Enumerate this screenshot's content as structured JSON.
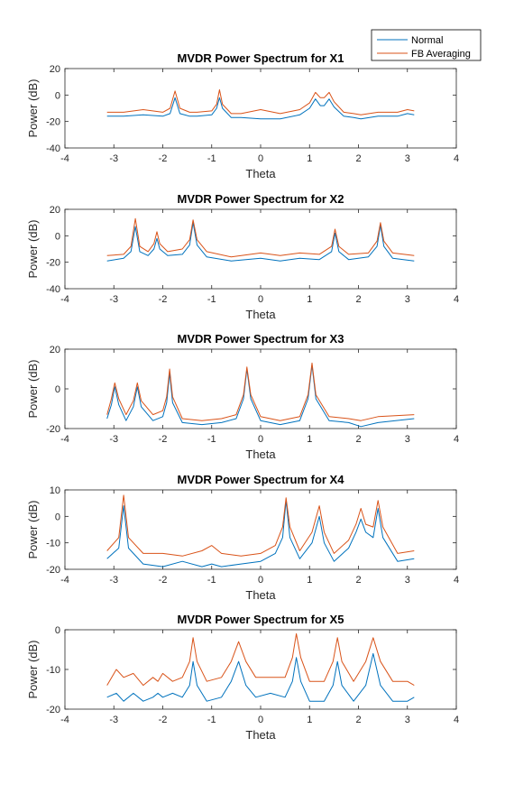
{
  "legend": {
    "placement": "top-right",
    "entries": [
      {
        "label": "Normal",
        "color": "#0072BD"
      },
      {
        "label": "FB Averaging",
        "color": "#D95319"
      }
    ]
  },
  "chart_data": [
    {
      "type": "line",
      "title": "MVDR Power Spectrum for X1",
      "xlabel": "Theta",
      "ylabel": "Power (dB)",
      "xlim": [
        -4,
        4
      ],
      "ylim": [
        -40,
        20
      ],
      "xticks": [
        "-4",
        "-3",
        "-2",
        "-1",
        "0",
        "1",
        "2",
        "3",
        "4"
      ],
      "yticks": [
        "-40",
        "-20",
        "0",
        "20"
      ],
      "series": [
        {
          "name": "Normal",
          "color": "#0072BD",
          "x": [
            -3.14,
            -2.8,
            -2.4,
            -2.0,
            -1.85,
            -1.75,
            -1.65,
            -1.45,
            -1.3,
            -1.0,
            -0.9,
            -0.84,
            -0.78,
            -0.6,
            -0.4,
            0.0,
            0.4,
            0.8,
            1.0,
            1.12,
            1.22,
            1.3,
            1.4,
            1.5,
            1.7,
            1.9,
            2.05,
            2.4,
            2.8,
            3.0,
            3.14
          ],
          "y": [
            -16,
            -16,
            -15,
            -16,
            -14,
            -2,
            -14,
            -16,
            -16,
            -15,
            -10,
            -2,
            -10,
            -17,
            -17,
            -18,
            -18,
            -15,
            -10,
            -3,
            -8,
            -8,
            -3,
            -9,
            -16,
            -17,
            -18,
            -16,
            -16,
            -14,
            -15
          ]
        },
        {
          "name": "FB Averaging",
          "color": "#D95319",
          "x": [
            -3.14,
            -2.8,
            -2.4,
            -2.0,
            -1.85,
            -1.75,
            -1.65,
            -1.45,
            -1.3,
            -1.0,
            -0.9,
            -0.84,
            -0.78,
            -0.6,
            -0.4,
            0.0,
            0.4,
            0.8,
            1.0,
            1.12,
            1.22,
            1.3,
            1.4,
            1.5,
            1.7,
            1.9,
            2.05,
            2.4,
            2.8,
            3.0,
            3.14
          ],
          "y": [
            -13,
            -13,
            -11,
            -13,
            -10,
            3,
            -10,
            -13,
            -13,
            -12,
            -7,
            4,
            -7,
            -14,
            -14,
            -11,
            -14,
            -11,
            -6,
            2,
            -2,
            -2,
            2,
            -5,
            -13,
            -14,
            -15,
            -13,
            -13,
            -11,
            -12
          ]
        }
      ]
    },
    {
      "type": "line",
      "title": "MVDR Power Spectrum for X2",
      "xlabel": "Theta",
      "ylabel": "Power (dB)",
      "xlim": [
        -4,
        4
      ],
      "ylim": [
        -40,
        20
      ],
      "xticks": [
        "-4",
        "-3",
        "-2",
        "-1",
        "0",
        "1",
        "2",
        "3",
        "4"
      ],
      "yticks": [
        "-40",
        "-20",
        "0",
        "20"
      ],
      "series": [
        {
          "name": "Normal",
          "color": "#0072BD",
          "x": [
            -3.14,
            -2.8,
            -2.65,
            -2.56,
            -2.47,
            -2.3,
            -2.18,
            -2.12,
            -2.06,
            -1.9,
            -1.6,
            -1.45,
            -1.38,
            -1.3,
            -1.1,
            -0.6,
            0.0,
            0.4,
            0.8,
            1.2,
            1.45,
            1.52,
            1.6,
            1.8,
            2.2,
            2.38,
            2.45,
            2.52,
            2.7,
            3.14
          ],
          "y": [
            -19,
            -17,
            -12,
            7,
            -12,
            -15,
            -10,
            -2,
            -10,
            -15,
            -14,
            -7,
            10,
            -7,
            -16,
            -19,
            -17,
            -19,
            -17,
            -18,
            -12,
            2,
            -12,
            -18,
            -16,
            -8,
            8,
            -8,
            -17,
            -19
          ]
        },
        {
          "name": "FB Averaging",
          "color": "#D95319",
          "x": [
            -3.14,
            -2.8,
            -2.65,
            -2.56,
            -2.47,
            -2.3,
            -2.18,
            -2.12,
            -2.06,
            -1.9,
            -1.6,
            -1.45,
            -1.38,
            -1.3,
            -1.1,
            -0.6,
            0.0,
            0.4,
            0.8,
            1.2,
            1.45,
            1.52,
            1.6,
            1.8,
            2.2,
            2.38,
            2.45,
            2.52,
            2.7,
            3.14
          ],
          "y": [
            -15,
            -14,
            -8,
            13,
            -8,
            -12,
            -6,
            3,
            -6,
            -12,
            -10,
            -3,
            12,
            -3,
            -12,
            -16,
            -13,
            -15,
            -13,
            -14,
            -8,
            5,
            -8,
            -14,
            -13,
            -4,
            10,
            -4,
            -13,
            -15
          ]
        }
      ]
    },
    {
      "type": "line",
      "title": "MVDR Power Spectrum for X3",
      "xlabel": "Theta",
      "ylabel": "Power (dB)",
      "xlim": [
        -4,
        4
      ],
      "ylim": [
        -20,
        20
      ],
      "xticks": [
        "-4",
        "-3",
        "-2",
        "-1",
        "0",
        "1",
        "2",
        "3",
        "4"
      ],
      "yticks": [
        "-20",
        "0",
        "20"
      ],
      "series": [
        {
          "name": "Normal",
          "color": "#0072BD",
          "x": [
            -3.14,
            -3.05,
            -2.98,
            -2.9,
            -2.75,
            -2.6,
            -2.52,
            -2.44,
            -2.2,
            -2.0,
            -1.92,
            -1.86,
            -1.8,
            -1.6,
            -1.2,
            -0.8,
            -0.5,
            -0.35,
            -0.28,
            -0.2,
            0.0,
            0.4,
            0.8,
            0.97,
            1.05,
            1.13,
            1.4,
            1.8,
            2.05,
            2.4,
            3.14
          ],
          "y": [
            -15,
            -8,
            1,
            -8,
            -16,
            -9,
            1,
            -9,
            -16,
            -14,
            -7,
            8,
            -7,
            -17,
            -18,
            -17,
            -15,
            -5,
            10,
            -5,
            -16,
            -18,
            -16,
            -5,
            12,
            -5,
            -16,
            -17,
            -19,
            -17,
            -15
          ]
        },
        {
          "name": "FB Averaging",
          "color": "#D95319",
          "x": [
            -3.14,
            -3.05,
            -2.98,
            -2.9,
            -2.75,
            -2.6,
            -2.52,
            -2.44,
            -2.2,
            -2.0,
            -1.92,
            -1.86,
            -1.8,
            -1.6,
            -1.2,
            -0.8,
            -0.5,
            -0.35,
            -0.28,
            -0.2,
            0.0,
            0.4,
            0.8,
            0.97,
            1.05,
            1.13,
            1.4,
            1.8,
            2.05,
            2.4,
            3.14
          ],
          "y": [
            -13,
            -5,
            3,
            -5,
            -13,
            -6,
            3,
            -6,
            -13,
            -11,
            -4,
            10,
            -4,
            -15,
            -16,
            -15,
            -13,
            -3,
            11,
            -3,
            -14,
            -16,
            -14,
            -3,
            13,
            -3,
            -14,
            -15,
            -16,
            -14,
            -13
          ]
        }
      ]
    },
    {
      "type": "line",
      "title": "MVDR Power Spectrum for X4",
      "xlabel": "Theta",
      "ylabel": "Power (dB)",
      "xlim": [
        -4,
        4
      ],
      "ylim": [
        -20,
        10
      ],
      "xticks": [
        "-4",
        "-3",
        "-2",
        "-1",
        "0",
        "1",
        "2",
        "3",
        "4"
      ],
      "yticks": [
        "-20",
        "-10",
        "0",
        "10"
      ],
      "series": [
        {
          "name": "Normal",
          "color": "#0072BD",
          "x": [
            -3.14,
            -2.9,
            -2.8,
            -2.7,
            -2.4,
            -2.0,
            -1.6,
            -1.2,
            -1.0,
            -0.8,
            -0.4,
            0.0,
            0.3,
            0.45,
            0.52,
            0.6,
            0.8,
            1.05,
            1.2,
            1.3,
            1.5,
            1.8,
            1.95,
            2.05,
            2.15,
            2.3,
            2.4,
            2.5,
            2.8,
            3.14
          ],
          "y": [
            -16,
            -12,
            4,
            -12,
            -18,
            -19,
            -17,
            -19,
            -18,
            -19,
            -18,
            -17,
            -14,
            -8,
            6,
            -8,
            -16,
            -10,
            0,
            -10,
            -17,
            -12,
            -6,
            -1,
            -6,
            -8,
            3,
            -8,
            -17,
            -16
          ]
        },
        {
          "name": "FB Averaging",
          "color": "#D95319",
          "x": [
            -3.14,
            -2.9,
            -2.8,
            -2.7,
            -2.4,
            -2.0,
            -1.6,
            -1.2,
            -1.0,
            -0.8,
            -0.4,
            0.0,
            0.3,
            0.45,
            0.52,
            0.6,
            0.8,
            1.05,
            1.2,
            1.3,
            1.5,
            1.8,
            1.95,
            2.05,
            2.15,
            2.3,
            2.4,
            2.5,
            2.8,
            3.14
          ],
          "y": [
            -13,
            -8,
            8,
            -8,
            -14,
            -14,
            -15,
            -13,
            -11,
            -14,
            -15,
            -14,
            -11,
            -4,
            7,
            -4,
            -13,
            -6,
            4,
            -6,
            -14,
            -9,
            -3,
            3,
            -3,
            -4,
            6,
            -4,
            -14,
            -13
          ]
        }
      ]
    },
    {
      "type": "line",
      "title": "MVDR Power Spectrum for X5",
      "xlabel": "Theta",
      "ylabel": "Power (dB)",
      "xlim": [
        -4,
        4
      ],
      "ylim": [
        -20,
        0
      ],
      "xticks": [
        "-4",
        "-3",
        "-2",
        "-1",
        "0",
        "1",
        "2",
        "3",
        "4"
      ],
      "yticks": [
        "-20",
        "-10",
        "0"
      ],
      "series": [
        {
          "name": "Normal",
          "color": "#0072BD",
          "x": [
            -3.14,
            -2.95,
            -2.8,
            -2.6,
            -2.4,
            -2.2,
            -2.1,
            -2.0,
            -1.8,
            -1.6,
            -1.45,
            -1.38,
            -1.3,
            -1.1,
            -0.8,
            -0.6,
            -0.45,
            -0.3,
            -0.1,
            0.2,
            0.5,
            0.65,
            0.73,
            0.82,
            1.0,
            1.3,
            1.48,
            1.57,
            1.66,
            1.9,
            2.15,
            2.3,
            2.45,
            2.7,
            3.0,
            3.14
          ],
          "y": [
            -17,
            -16,
            -18,
            -16,
            -18,
            -17,
            -16,
            -17,
            -16,
            -17,
            -14,
            -8,
            -14,
            -18,
            -17,
            -13,
            -8,
            -14,
            -17,
            -16,
            -17,
            -13,
            -7,
            -13,
            -18,
            -18,
            -14,
            -8,
            -14,
            -18,
            -14,
            -6,
            -14,
            -18,
            -18,
            -17
          ]
        },
        {
          "name": "FB Averaging",
          "color": "#D95319",
          "x": [
            -3.14,
            -2.95,
            -2.8,
            -2.6,
            -2.4,
            -2.2,
            -2.1,
            -2.0,
            -1.8,
            -1.6,
            -1.45,
            -1.38,
            -1.3,
            -1.1,
            -0.8,
            -0.6,
            -0.45,
            -0.3,
            -0.1,
            0.2,
            0.5,
            0.65,
            0.73,
            0.82,
            1.0,
            1.3,
            1.48,
            1.57,
            1.66,
            1.9,
            2.15,
            2.3,
            2.45,
            2.7,
            3.0,
            3.14
          ],
          "y": [
            -14,
            -10,
            -12,
            -11,
            -14,
            -12,
            -13,
            -11,
            -13,
            -12,
            -8,
            -2,
            -8,
            -13,
            -12,
            -8,
            -3,
            -8,
            -12,
            -12,
            -12,
            -7,
            -1,
            -7,
            -13,
            -13,
            -8,
            -2,
            -8,
            -13,
            -8,
            -2,
            -8,
            -13,
            -13,
            -14
          ]
        }
      ]
    }
  ]
}
